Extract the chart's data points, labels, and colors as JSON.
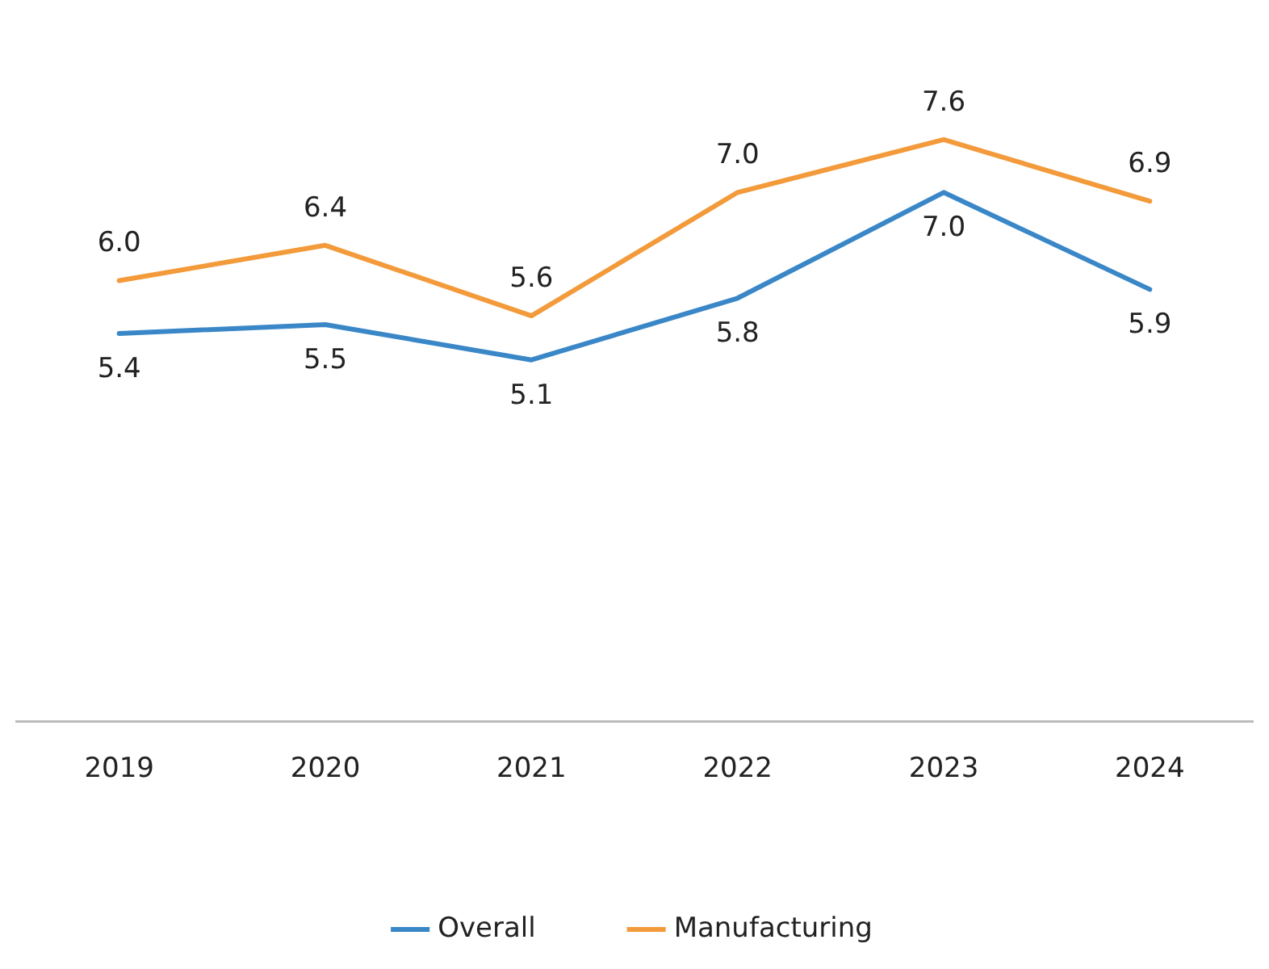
{
  "chart_data": {
    "type": "line",
    "categories": [
      "2019",
      "2020",
      "2021",
      "2022",
      "2023",
      "2024"
    ],
    "series": [
      {
        "name": "Overall",
        "color": "#3a87c8",
        "values": [
          5.4,
          5.5,
          5.1,
          5.8,
          7.0,
          5.9
        ],
        "value_labels": [
          "5.4",
          "5.5",
          "5.1",
          "5.8",
          "7.0",
          "5.9"
        ]
      },
      {
        "name": "Manufacturing",
        "color": "#f39a3b",
        "values": [
          6.0,
          6.4,
          5.6,
          7.0,
          7.6,
          6.9
        ],
        "value_labels": [
          "6.0",
          "6.4",
          "5.6",
          "7.0",
          "7.6",
          "6.9"
        ]
      }
    ],
    "tick_labels": "x",
    "grid": false,
    "legend": "bottom",
    "marker": "none",
    "line_style": "solid"
  }
}
